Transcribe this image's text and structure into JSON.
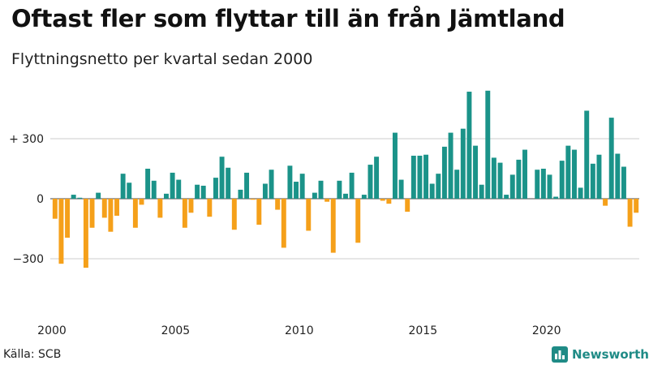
{
  "title": "Oftast fler som flyttar till än från Jämtland",
  "subtitle": "Flyttningsnetto per kvartal sedan 2000",
  "source": "Källa: SCB",
  "brand": {
    "name": "Newsworthy",
    "icon": "bar-chart-logo-icon",
    "color": "#1f8b86"
  },
  "colors": {
    "positive": "#1b9389",
    "negative": "#f5a01a",
    "grid": "#cccccc"
  },
  "chart_data": {
    "type": "bar",
    "xlabel": "",
    "ylabel": "",
    "ylim": [
      -420,
      560
    ],
    "y_ticks": [
      {
        "value": 300,
        "label": "+ 300"
      },
      {
        "value": 0,
        "label": "0"
      },
      {
        "value": -300,
        "label": "−300"
      }
    ],
    "x_ticks": [
      "2000",
      "2005",
      "2010",
      "2015",
      "2020"
    ],
    "start_year": 2000,
    "quarters_per_year": 4,
    "values": [
      -100,
      -325,
      -195,
      20,
      5,
      -345,
      -145,
      30,
      -95,
      -165,
      -85,
      125,
      80,
      -145,
      -30,
      150,
      90,
      -95,
      25,
      130,
      95,
      -145,
      -70,
      70,
      65,
      -90,
      105,
      210,
      155,
      -155,
      45,
      130,
      -5,
      -130,
      75,
      145,
      -55,
      -245,
      165,
      85,
      125,
      -160,
      30,
      90,
      -15,
      -270,
      90,
      25,
      130,
      -220,
      20,
      170,
      210,
      -10,
      -25,
      330,
      95,
      -65,
      215,
      215,
      220,
      75,
      125,
      260,
      330,
      145,
      350,
      535,
      265,
      70,
      540,
      205,
      180,
      20,
      120,
      195,
      245,
      0,
      145,
      150,
      120,
      10,
      190,
      265,
      245,
      55,
      440,
      175,
      220,
      -35,
      405,
      225,
      160,
      -140,
      -70
    ]
  }
}
